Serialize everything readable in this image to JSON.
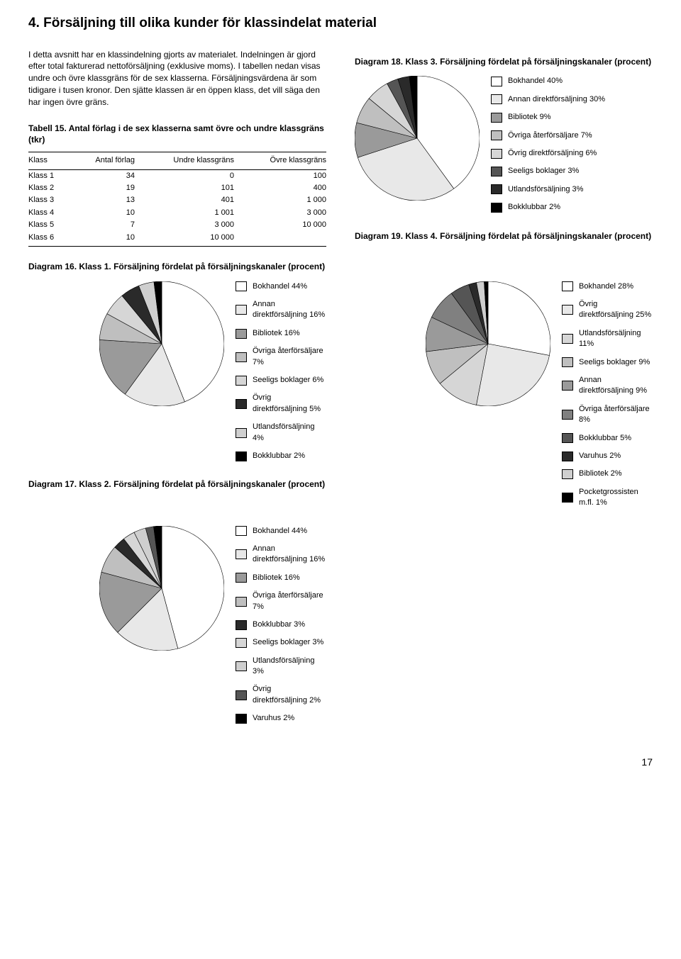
{
  "page": {
    "title": "4. Försäljning till olika kunder för klassindelat material",
    "intro": "I detta avsnitt har en klassindelning gjorts av materialet. Indelningen är gjord efter total fakturerad nettoförsäljning (exklusive moms). I tabellen nedan visas undre och övre klassgräns för de sex klasserna. Försäljningsvärdena är som tidigare i tusen kronor. Den sjätte klassen är en öppen klass, det vill säga den har ingen övre gräns.",
    "pagenum": "17"
  },
  "tabell15": {
    "title": "Tabell 15. Antal förlag i de sex klasserna samt övre och undre klassgräns (tkr)",
    "headers": {
      "c0": "Klass",
      "c1": "Antal förlag",
      "c2": "Undre klassgräns",
      "c3": "Övre klassgräns"
    },
    "rows": [
      {
        "c0": "Klass 1",
        "c1": "34",
        "c2": "0",
        "c3": "100"
      },
      {
        "c0": "Klass 2",
        "c1": "19",
        "c2": "101",
        "c3": "400"
      },
      {
        "c0": "Klass 3",
        "c1": "13",
        "c2": "401",
        "c3": "1 000"
      },
      {
        "c0": "Klass 4",
        "c1": "10",
        "c2": "1 001",
        "c3": "3 000"
      },
      {
        "c0": "Klass 5",
        "c1": "7",
        "c2": "3 000",
        "c3": "10 000"
      },
      {
        "c0": "Klass 6",
        "c1": "10",
        "c2": "10 000",
        "c3": ""
      }
    ]
  },
  "diagrams": {
    "d16": {
      "type": "pie",
      "title": "Diagram 16. Klass 1. Försäljning fördelat på försäljningskanaler (procent)",
      "pie_radius": 88,
      "stroke": "#000000",
      "slices": [
        {
          "label": "Bokhandel 44%",
          "value": 44,
          "color": "#ffffff"
        },
        {
          "label": "Annan direktförsäljning 16%",
          "value": 16,
          "color": "#e8e8e8"
        },
        {
          "label": "Bibliotek 16%",
          "value": 16,
          "color": "#9a9a9a"
        },
        {
          "label": "Övriga återförsäljare 7%",
          "value": 7,
          "color": "#bfbfbf"
        },
        {
          "label": "Seeligs boklager 6%",
          "value": 6,
          "color": "#d6d6d6"
        },
        {
          "label": "Övrig direktförsäljning 5%",
          "value": 5,
          "color": "#2a2a2a"
        },
        {
          "label": "Utlandsförsäljning 4%",
          "value": 4,
          "color": "#cfcfcf"
        },
        {
          "label": "Bokklubbar 2%",
          "value": 2,
          "color": "#000000"
        }
      ]
    },
    "d17": {
      "type": "pie",
      "title": "Diagram 17. Klass 2. Försäljning fördelat på försäljningskanaler (procent)",
      "pie_radius": 88,
      "stroke": "#000000",
      "slices": [
        {
          "label": "Bokhandel 44%",
          "value": 44,
          "color": "#ffffff"
        },
        {
          "label": "Annan direktförsäljning 16%",
          "value": 16,
          "color": "#e8e8e8"
        },
        {
          "label": "Bibliotek 16%",
          "value": 16,
          "color": "#9a9a9a"
        },
        {
          "label": "Övriga återförsäljare 7%",
          "value": 7,
          "color": "#bfbfbf"
        },
        {
          "label": "Bokklubbar 3%",
          "value": 3,
          "color": "#2a2a2a"
        },
        {
          "label": "Seeligs boklager 3%",
          "value": 3,
          "color": "#d6d6d6"
        },
        {
          "label": "Utlandsförsäljning 3%",
          "value": 3,
          "color": "#cfcfcf"
        },
        {
          "label": "Övrig direktförsäljning 2%",
          "value": 2,
          "color": "#555555"
        },
        {
          "label": "Varuhus 2%",
          "value": 2,
          "color": "#000000"
        }
      ]
    },
    "d18": {
      "type": "pie",
      "title": "Diagram 18. Klass 3. Försäljning fördelat på försäljningskanaler (procent)",
      "pie_radius": 88,
      "stroke": "#000000",
      "slices": [
        {
          "label": "Bokhandel 40%",
          "value": 40,
          "color": "#ffffff"
        },
        {
          "label": "Annan direktförsäljning 30%",
          "value": 30,
          "color": "#e8e8e8"
        },
        {
          "label": "Bibliotek 9%",
          "value": 9,
          "color": "#9a9a9a"
        },
        {
          "label": "Övriga återförsäljare 7%",
          "value": 7,
          "color": "#bfbfbf"
        },
        {
          "label": "Övrig direktförsäljning 6%",
          "value": 6,
          "color": "#d6d6d6"
        },
        {
          "label": "Seeligs boklager 3%",
          "value": 3,
          "color": "#555555"
        },
        {
          "label": "Utlandsförsäljning 3%",
          "value": 3,
          "color": "#2a2a2a"
        },
        {
          "label": "Bokklubbar 2%",
          "value": 2,
          "color": "#000000"
        }
      ]
    },
    "d19": {
      "type": "pie",
      "title": "Diagram 19. Klass 4. Försäljning fördelat på försäljningskanaler (procent)",
      "pie_radius": 88,
      "stroke": "#000000",
      "slices": [
        {
          "label": "Bokhandel 28%",
          "value": 28,
          "color": "#ffffff"
        },
        {
          "label": "Övrig direktförsäljning 25%",
          "value": 25,
          "color": "#e8e8e8"
        },
        {
          "label": "Utlandsförsäljning 11%",
          "value": 11,
          "color": "#d6d6d6"
        },
        {
          "label": "Seeligs boklager 9%",
          "value": 9,
          "color": "#bfbfbf"
        },
        {
          "label": "Annan direktförsäljning 9%",
          "value": 9,
          "color": "#9a9a9a"
        },
        {
          "label": "Övriga återförsäljare 8%",
          "value": 8,
          "color": "#808080"
        },
        {
          "label": "Bokklubbar 5%",
          "value": 5,
          "color": "#555555"
        },
        {
          "label": "Varuhus 2%",
          "value": 2,
          "color": "#2a2a2a"
        },
        {
          "label": "Bibliotek 2%",
          "value": 2,
          "color": "#cfcfcf"
        },
        {
          "label": "Pocketgrossisten m.fl. 1%",
          "value": 1,
          "color": "#000000"
        }
      ]
    }
  }
}
